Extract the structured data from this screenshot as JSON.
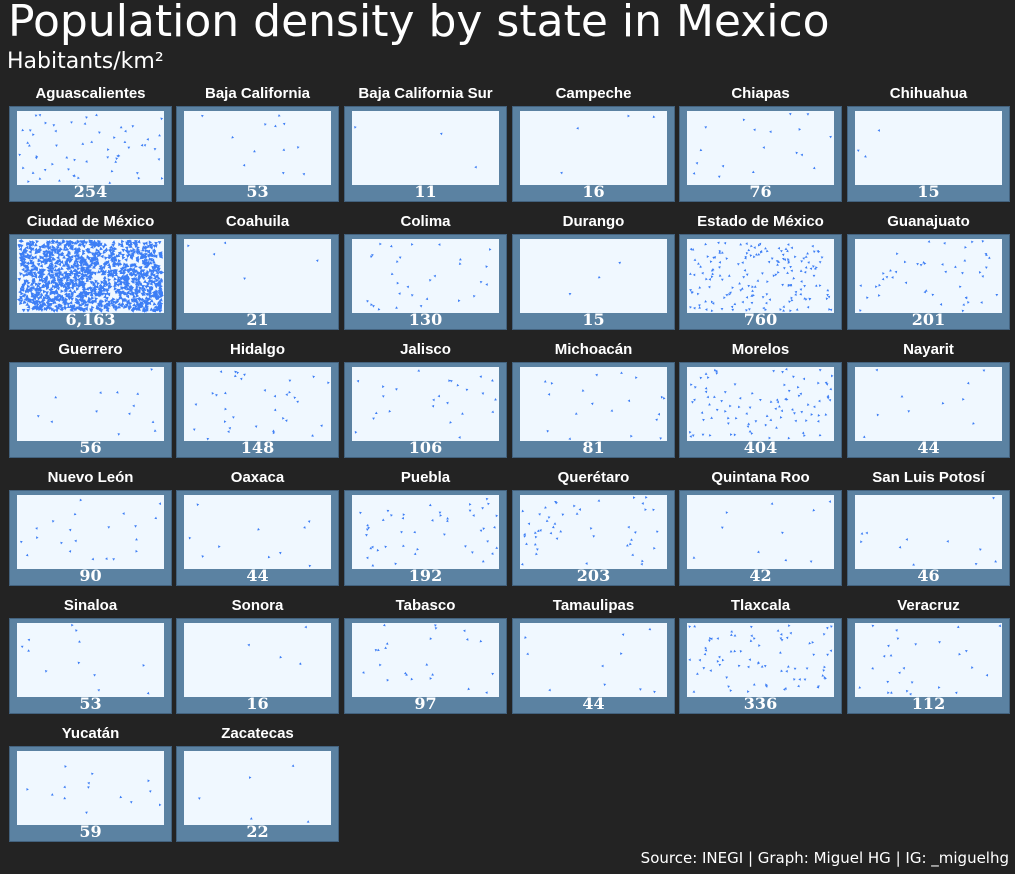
{
  "header": {
    "title": "Population density by state in Mexico",
    "subtitle": "Habitants/km²"
  },
  "footer": {
    "source": "Source: INEGI | Graph: Miguel HG | IG: _miguelhg"
  },
  "colors": {
    "background": "#232323",
    "frame": "#5b82a2",
    "plot_bg": "#f0f8ff",
    "dot": "#3d7ef5"
  },
  "chart_data": {
    "type": "scatter",
    "title": "Population density by state in Mexico",
    "subtitle": "Habitants/km²",
    "layout": "small multiples, 6 columns",
    "panels": [
      {
        "state": "Aguascalientes",
        "value": 254,
        "label": "254"
      },
      {
        "state": "Baja California",
        "value": 53,
        "label": "53"
      },
      {
        "state": "Baja California Sur",
        "value": 11,
        "label": "11"
      },
      {
        "state": "Campeche",
        "value": 16,
        "label": "16"
      },
      {
        "state": "Chiapas",
        "value": 76,
        "label": "76"
      },
      {
        "state": "Chihuahua",
        "value": 15,
        "label": "15"
      },
      {
        "state": "Ciudad de México",
        "value": 6163,
        "label": "6,163"
      },
      {
        "state": "Coahuila",
        "value": 21,
        "label": "21"
      },
      {
        "state": "Colima",
        "value": 130,
        "label": "130"
      },
      {
        "state": "Durango",
        "value": 15,
        "label": "15"
      },
      {
        "state": "Estado de México",
        "value": 760,
        "label": "760"
      },
      {
        "state": "Guanajuato",
        "value": 201,
        "label": "201"
      },
      {
        "state": "Guerrero",
        "value": 56,
        "label": "56"
      },
      {
        "state": "Hidalgo",
        "value": 148,
        "label": "148"
      },
      {
        "state": "Jalisco",
        "value": 106,
        "label": "106"
      },
      {
        "state": "Michoacán",
        "value": 81,
        "label": "81"
      },
      {
        "state": "Morelos",
        "value": 404,
        "label": "404"
      },
      {
        "state": "Nayarit",
        "value": 44,
        "label": "44"
      },
      {
        "state": "Nuevo León",
        "value": 90,
        "label": "90"
      },
      {
        "state": "Oaxaca",
        "value": 44,
        "label": "44"
      },
      {
        "state": "Puebla",
        "value": 192,
        "label": "192"
      },
      {
        "state": "Querétaro",
        "value": 203,
        "label": "203"
      },
      {
        "state": "Quintana Roo",
        "value": 42,
        "label": "42"
      },
      {
        "state": "San Luis Potosí",
        "value": 46,
        "label": "46"
      },
      {
        "state": "Sinaloa",
        "value": 53,
        "label": "53"
      },
      {
        "state": "Sonora",
        "value": 16,
        "label": "16"
      },
      {
        "state": "Tabasco",
        "value": 97,
        "label": "97"
      },
      {
        "state": "Tamaulipas",
        "value": 44,
        "label": "44"
      },
      {
        "state": "Tlaxcala",
        "value": 336,
        "label": "336"
      },
      {
        "state": "Veracruz",
        "value": 112,
        "label": "112"
      },
      {
        "state": "Yucatán",
        "value": 59,
        "label": "59"
      },
      {
        "state": "Zacatecas",
        "value": 22,
        "label": "22"
      }
    ]
  }
}
